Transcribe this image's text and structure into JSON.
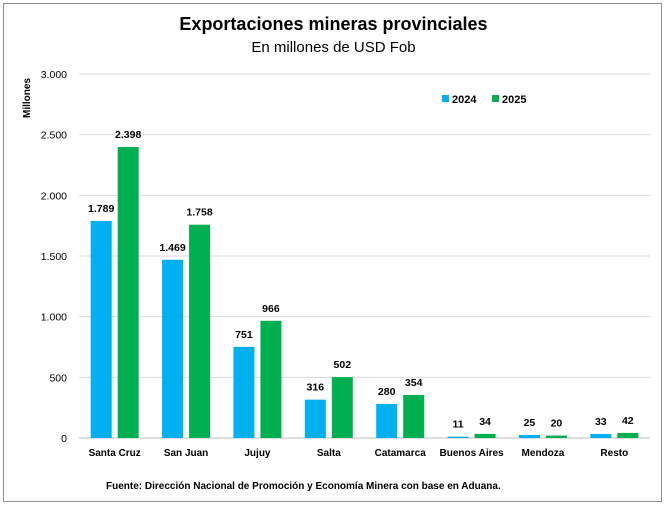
{
  "chart_data": {
    "type": "bar",
    "title": "Exportaciones mineras provinciales",
    "subtitle": "En millones de USD Fob",
    "ylabel": "Millones",
    "xlabel": "",
    "ylim": [
      0,
      3000
    ],
    "yticks": [
      0,
      500,
      1000,
      1500,
      2000,
      2500,
      3000
    ],
    "ytick_labels": [
      "0",
      "500",
      "1.000",
      "1.500",
      "2.000",
      "2.500",
      "3.000"
    ],
    "grid": true,
    "legend_position": "top-right",
    "categories": [
      "Santa Cruz",
      "San Juan",
      "Jujuy",
      "Salta",
      "Catamarca",
      "Buenos Aires",
      "Mendoza",
      "Resto"
    ],
    "series": [
      {
        "name": "2024",
        "color": "#00b0f0",
        "values": [
          1789,
          1469,
          751,
          316,
          280,
          11,
          25,
          33
        ],
        "labels": [
          "1.789",
          "1.469",
          "751",
          "316",
          "280",
          "11",
          "25",
          "33"
        ]
      },
      {
        "name": "2025",
        "color": "#00b050",
        "values": [
          2398,
          1758,
          966,
          502,
          354,
          34,
          20,
          42
        ],
        "labels": [
          "2.398",
          "1.758",
          "966",
          "502",
          "354",
          "34",
          "20",
          "42"
        ]
      }
    ],
    "source": "Fuente: Dirección Nacional de Promoción y Economía Minera con base en Aduana."
  }
}
